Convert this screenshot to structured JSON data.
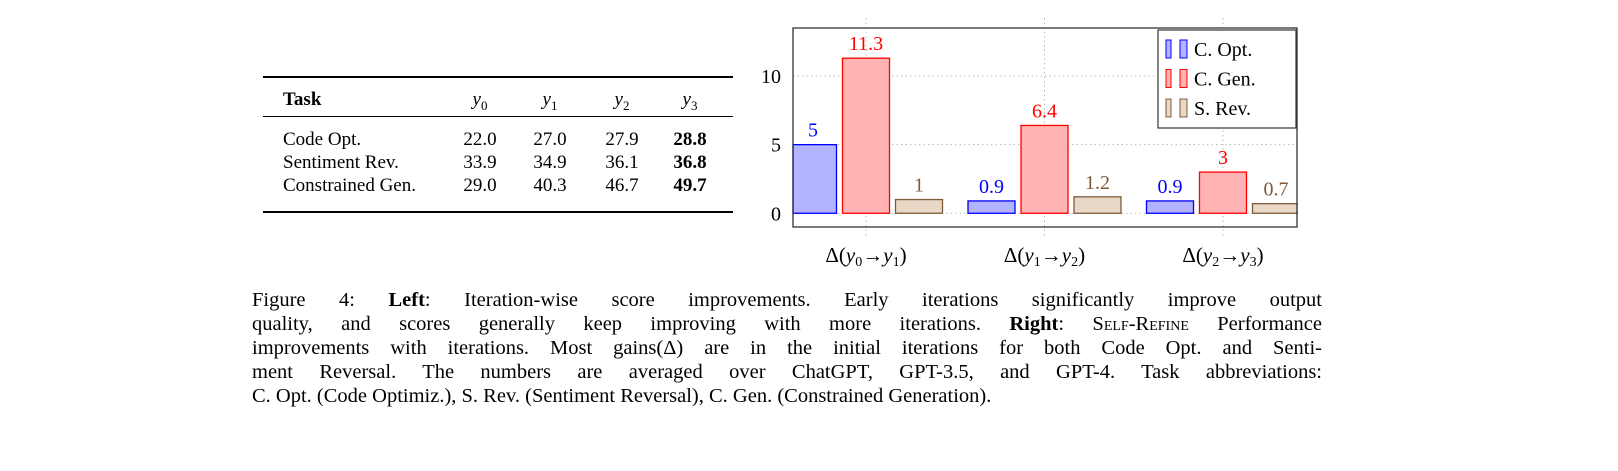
{
  "table": {
    "headers": [
      "Task",
      "y0",
      "y1",
      "y2",
      "y3"
    ],
    "header_subscripts": [
      "",
      "0",
      "1",
      "2",
      "3"
    ],
    "rows": [
      {
        "task": "Code Opt.",
        "values": [
          "22.0",
          "27.0",
          "27.9",
          "28.8"
        ]
      },
      {
        "task": "Sentiment Rev.",
        "values": [
          "33.9",
          "34.9",
          "36.1",
          "36.8"
        ]
      },
      {
        "task": "Constrained Gen.",
        "values": [
          "29.0",
          "40.3",
          "46.7",
          "49.7"
        ]
      }
    ],
    "bold_column": 3
  },
  "chart_data": {
    "type": "bar",
    "categories": [
      "Δ(y0→y1)",
      "Δ(y1→y2)",
      "Δ(y2→y3)"
    ],
    "series": [
      {
        "name": "C. Opt.",
        "values": [
          5,
          0.9,
          0.9
        ],
        "labels": [
          "5",
          "0.9",
          "0.9"
        ],
        "color": "#0000ff",
        "fill": "#b3b3ff"
      },
      {
        "name": "C. Gen.",
        "values": [
          11.3,
          6.4,
          3
        ],
        "labels": [
          "11.3",
          "6.4",
          "3"
        ],
        "color": "#ff0000",
        "fill": "#ffb3b3"
      },
      {
        "name": "S. Rev.",
        "values": [
          1,
          1.2,
          0.7
        ],
        "labels": [
          "1",
          "1.2",
          "0.7"
        ],
        "color": "#7f5a3a",
        "fill": "#e8d8c5"
      }
    ],
    "yticks": [
      0,
      5,
      10
    ],
    "ylim": [
      -1,
      13.5
    ],
    "grid": true,
    "legend": "top-right",
    "xlabel": "",
    "ylabel": "",
    "title": ""
  },
  "caption": {
    "lines": [
      [
        {
          "t": "Figure 4: "
        },
        {
          "t": "Left",
          "b": true
        },
        {
          "t": ": Iteration-wise score improvements. Early iterations significantly improve output"
        }
      ],
      [
        {
          "t": "quality, and scores generally keep improving with more iterations. "
        },
        {
          "t": "Right",
          "b": true
        },
        {
          "t": ": "
        },
        {
          "t": "Self-Refine",
          "sc": true
        },
        {
          "t": " Performance"
        }
      ],
      [
        {
          "t": "improvements with iterations. Most gains(Δ) are in the initial iterations for both Code Opt. and Senti-"
        }
      ],
      [
        {
          "t": "ment Reversal. The numbers are averaged over ChatGPT, GPT-3.5, and GPT-4. Task abbreviations:"
        }
      ],
      [
        {
          "t": "C. Opt. (Code Optimiz.), S. Rev. (Sentiment Reversal), C. Gen. (Constrained Generation)."
        }
      ]
    ]
  }
}
